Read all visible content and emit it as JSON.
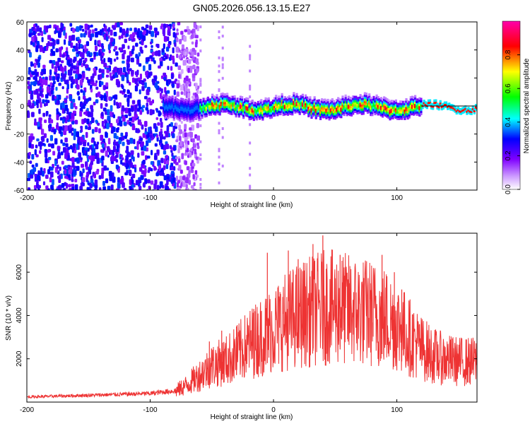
{
  "title": "GN05.2026.056.13.15.E27",
  "chart_data": [
    {
      "type": "heatmap",
      "ylabel": "Frequency (Hz)",
      "xlabel": "Height of straight line (km)",
      "xlim": [
        -200,
        165
      ],
      "ylim": [
        -60,
        60
      ],
      "xticks": [
        -200,
        -100,
        0,
        100
      ],
      "xtick_labels": [
        "-200",
        "-100",
        "0",
        "100"
      ],
      "yticks": [
        -60,
        -40,
        -20,
        0,
        20,
        40,
        60
      ],
      "ytick_labels": [
        "-60",
        "-40",
        "-20",
        "0",
        "20",
        "40",
        "60"
      ],
      "ridge_frequency_hz": 0,
      "noise_region_km": [
        -200,
        -70
      ],
      "colorbar": {
        "label": "Normalized spectral amplitude",
        "range": [
          0.0,
          1.0
        ],
        "ticks": [
          0.0,
          0.2,
          0.4,
          0.6,
          0.8
        ],
        "tick_labels": [
          "0.0",
          "0.2",
          "0.4",
          "0.6",
          "0.8"
        ],
        "colors": [
          "#ffffff",
          "#7f00ff",
          "#0000ff",
          "#00ffff",
          "#00ff00",
          "#ffff00",
          "#ff0000",
          "#ff00aa"
        ]
      }
    },
    {
      "type": "line",
      "ylabel": "SNR (10 * v/v)",
      "xlabel": "Height of straight line (km)",
      "xlim": [
        -200,
        165
      ],
      "ylim": [
        0,
        7800
      ],
      "xticks": [
        -200,
        -100,
        0,
        100
      ],
      "xtick_labels": [
        "-200",
        "-100",
        "0",
        "100"
      ],
      "yticks": [
        2000,
        4000,
        6000
      ],
      "ytick_labels": [
        "2000",
        "4000",
        "6000"
      ],
      "series_color": "#ee3333",
      "envelope_x": [
        -200,
        -150,
        -100,
        -80,
        -70,
        -60,
        -50,
        -40,
        -30,
        -20,
        -10,
        0,
        10,
        20,
        30,
        40,
        50,
        60,
        70,
        80,
        90,
        100,
        110,
        120,
        130,
        140,
        150,
        165
      ],
      "envelope_y": [
        250,
        330,
        420,
        550,
        900,
        1400,
        1900,
        2100,
        2500,
        3000,
        3400,
        3800,
        4200,
        4500,
        4700,
        4900,
        4900,
        4800,
        4700,
        4600,
        4400,
        4000,
        3400,
        2800,
        2400,
        2200,
        2100,
        2100
      ],
      "spikes": [
        [
          -52,
          2800
        ],
        [
          -42,
          3300
        ],
        [
          -30,
          3500
        ],
        [
          -16,
          4300
        ],
        [
          -5,
          6900
        ],
        [
          12,
          7000
        ],
        [
          20,
          6600
        ],
        [
          32,
          7300
        ],
        [
          40,
          7700
        ],
        [
          54,
          6800
        ],
        [
          88,
          6800
        ],
        [
          98,
          6000
        ],
        [
          104,
          5200
        ]
      ]
    }
  ]
}
